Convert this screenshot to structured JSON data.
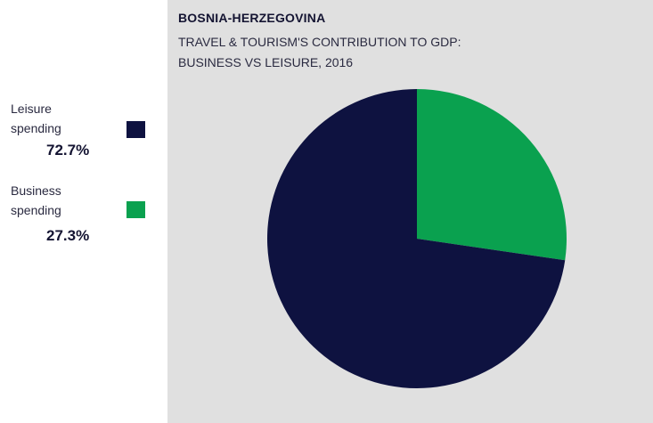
{
  "header": {
    "title": "BOSNIA-HERZEGOVINA",
    "subtitle_line1": "TRAVEL & TOURISM'S CONTRIBUTION TO GDP:",
    "subtitle_line2": "BUSINESS VS LEISURE, 2016"
  },
  "legend": [
    {
      "line1": "Leisure",
      "line2": "spending",
      "value_label": "72.7%",
      "color": "#0e1240"
    },
    {
      "line1": "Business",
      "line2": "spending",
      "value_label": "27.3%",
      "color": "#0aa14f"
    }
  ],
  "chart_data": {
    "type": "pie",
    "title": "BOSNIA-HERZEGOVINA",
    "subtitle": "TRAVEL & TOURISM'S CONTRIBUTION TO GDP: BUSINESS VS LEISURE, 2016",
    "categories": [
      "Leisure spending",
      "Business spending"
    ],
    "values": [
      72.7,
      27.3
    ],
    "unit": "%",
    "colors": [
      "#0e1240",
      "#0aa14f"
    ],
    "legend_position": "left",
    "start_slice": "Business spending",
    "direction": "clockwise from top"
  }
}
